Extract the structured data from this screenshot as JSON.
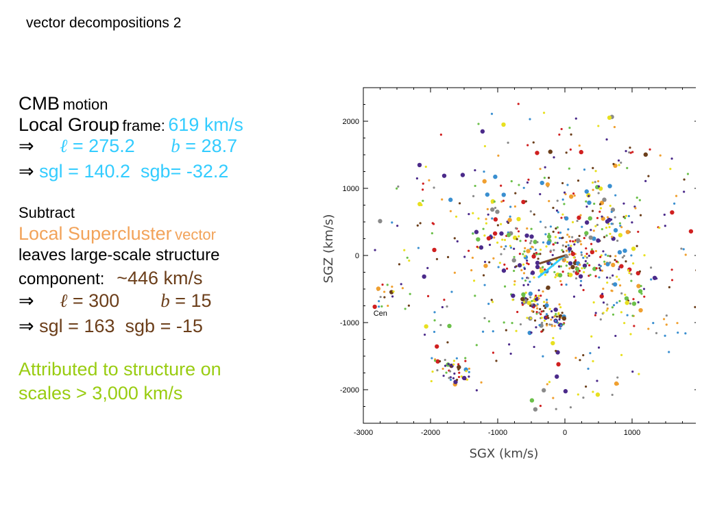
{
  "title": "vector decompositions 2",
  "cmb": {
    "label_big": "CMB",
    "label_small": "motion",
    "frame_big": "Local Group",
    "frame_small": "frame:",
    "speed": "619 km/s",
    "arrow": "⇒",
    "l_symbol": "ℓ",
    "l_value": "= 275.2",
    "b_symbol": "b",
    "b_value": "= 28.7",
    "sgl_label": "sgl",
    "sgl_value": "= 140.2",
    "sgb_label": "sgb=",
    "sgb_value": "-32.2"
  },
  "subtract": {
    "word": "Subtract",
    "lsc_big": "Local Supercluster",
    "lsc_small": "vector",
    "leaves": "leaves large-scale structure",
    "component": "component:",
    "speed": "~446 km/s",
    "arrow": "⇒",
    "l_symbol": "ℓ",
    "l_value": "= 300",
    "b_symbol": "b",
    "b_value": "=  15",
    "sgl_label": "sgl",
    "sgl_value": "= 163",
    "sgb_label": "sgb",
    "sgb_value": "= -15"
  },
  "attributed": {
    "line1": "Attributed to structure on",
    "line2": "scales > 3,000 km/s"
  },
  "chart_data": {
    "type": "scatter",
    "xlabel": "SGX (km/s)",
    "ylabel": "SGZ (km/s)",
    "xlim": [
      -3000,
      2000
    ],
    "ylim": [
      -2500,
      2500
    ],
    "xticks": [
      -3000,
      -2000,
      -1000,
      0,
      1000
    ],
    "yticks": [
      -2000,
      -1000,
      0,
      1000,
      2000
    ],
    "annotations": [
      {
        "text": "Cen",
        "x": -2850,
        "y": -900
      }
    ],
    "vectors": [
      {
        "x0": 0,
        "y0": 0,
        "x1": -400,
        "y1": -330,
        "color": "#33ccff"
      },
      {
        "x0": 0,
        "y0": 0,
        "x1": -380,
        "y1": -120,
        "color": "#7a4a2a"
      }
    ],
    "colors": [
      "#4b2a8a",
      "#3a8fd0",
      "#e8e020",
      "#d02020",
      "#6b3e1a",
      "#6cc04a",
      "#f0a030",
      "#8a8a8a"
    ]
  }
}
